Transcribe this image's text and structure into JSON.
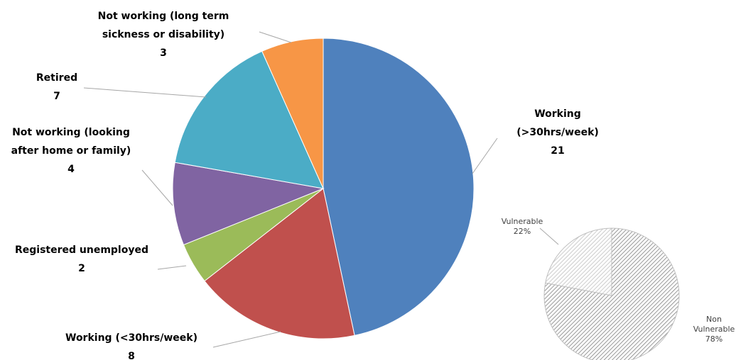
{
  "chart_data": [
    {
      "type": "pie",
      "categories": [
        "Working (>30hrs/week)",
        "Working (<30hrs/week)",
        "Registered unemployed",
        "Not working (looking after home or family)",
        "Retired",
        "Not working (long term sickness or disability)"
      ],
      "values": [
        21,
        8,
        2,
        4,
        7,
        3
      ],
      "colors": [
        "#4f81bd",
        "#c0504d",
        "#9bbb59",
        "#8064a2",
        "#4bacc6",
        "#f79646"
      ]
    },
    {
      "type": "pie",
      "categories": [
        "Non Vulnerable",
        "Vulnerable"
      ],
      "values": [
        78,
        22
      ],
      "value_labels": [
        "78%",
        "22%"
      ],
      "colors": [
        "#7f7f7f",
        "#bfbfbf"
      ],
      "pattern": "hatch"
    }
  ]
}
